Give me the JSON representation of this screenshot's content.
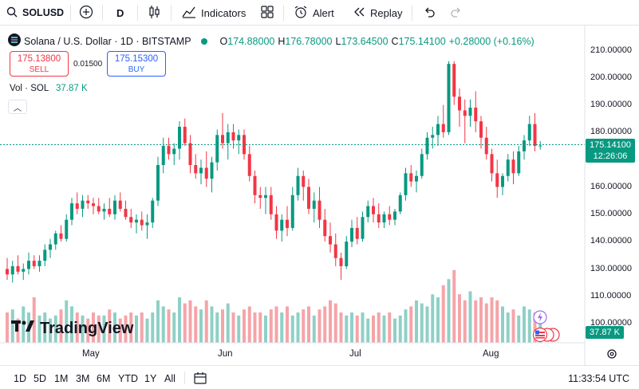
{
  "toolbar": {
    "symbol": "SOLUSD",
    "interval": "D",
    "indicators_label": "Indicators",
    "alert_label": "Alert",
    "replay_label": "Replay"
  },
  "legend": {
    "title": "Solana / U.S. Dollar · 1D · BITSTAMP",
    "open_label": "O",
    "open": "174.88000",
    "high_label": "H",
    "high": "176.78000",
    "low_label": "L",
    "low": "173.64500",
    "close_label": "C",
    "close": "175.14100",
    "change": "+0.28000 (+0.16%)"
  },
  "trade": {
    "sell_price": "175.13800",
    "sell_label": "SELL",
    "spread": "0.01500",
    "buy_price": "175.15300",
    "buy_label": "BUY"
  },
  "volume_legend": {
    "label": "Vol · SOL",
    "value": "37.87 K"
  },
  "price_axis": [
    "210.00000",
    "200.00000",
    "190.00000",
    "180.00000",
    "160.00000",
    "150.00000",
    "140.00000",
    "130.00000",
    "110.00000",
    "100.00000"
  ],
  "current_price": {
    "price": "175.14100",
    "countdown": "12:26:06"
  },
  "current_volume": "37.87 K",
  "time_axis": [
    "May",
    "Jun",
    "Jul",
    "Aug"
  ],
  "logo_text": "TradingView",
  "bottom": {
    "ranges": [
      "1D",
      "5D",
      "1M",
      "3M",
      "6M",
      "YTD",
      "1Y",
      "All"
    ],
    "clock": "11:33:54 UTC"
  },
  "colors": {
    "up": "#089981",
    "down": "#f23645",
    "up_vol": "#8fd0c6",
    "down_vol": "#f5a4a8"
  },
  "chart_data": {
    "type": "candlestick",
    "ylim": [
      100,
      212
    ],
    "ohlc": [
      [
        130,
        134,
        126,
        128
      ],
      [
        128,
        133,
        125,
        131
      ],
      [
        131,
        135,
        128,
        129
      ],
      [
        129,
        132,
        126,
        130
      ],
      [
        130,
        136,
        128,
        133
      ],
      [
        133,
        135,
        130,
        131
      ],
      [
        131,
        135,
        129,
        133
      ],
      [
        133,
        139,
        131,
        137
      ],
      [
        137,
        141,
        134,
        139
      ],
      [
        139,
        144,
        137,
        143
      ],
      [
        143,
        146,
        140,
        141
      ],
      [
        141,
        150,
        140,
        148
      ],
      [
        148,
        156,
        146,
        154
      ],
      [
        154,
        158,
        150,
        152
      ],
      [
        152,
        157,
        149,
        155
      ],
      [
        155,
        157,
        152,
        154
      ],
      [
        154,
        156,
        150,
        153
      ],
      [
        153,
        156,
        150,
        151
      ],
      [
        151,
        154,
        148,
        152
      ],
      [
        152,
        156,
        149,
        150
      ],
      [
        150,
        157,
        148,
        155
      ],
      [
        155,
        158,
        151,
        152
      ],
      [
        152,
        155,
        148,
        149
      ],
      [
        149,
        152,
        145,
        147
      ],
      [
        147,
        150,
        143,
        148
      ],
      [
        148,
        151,
        144,
        146
      ],
      [
        146,
        150,
        141,
        147
      ],
      [
        147,
        156,
        145,
        155
      ],
      [
        155,
        171,
        153,
        168
      ],
      [
        168,
        178,
        165,
        175
      ],
      [
        175,
        178,
        170,
        172
      ],
      [
        172,
        176,
        168,
        174
      ],
      [
        174,
        184,
        170,
        182
      ],
      [
        182,
        185,
        175,
        176
      ],
      [
        176,
        179,
        165,
        168
      ],
      [
        168,
        172,
        163,
        165
      ],
      [
        165,
        170,
        161,
        167
      ],
      [
        167,
        173,
        160,
        163
      ],
      [
        163,
        171,
        158,
        169
      ],
      [
        169,
        181,
        166,
        179
      ],
      [
        179,
        187,
        174,
        176
      ],
      [
        176,
        183,
        170,
        180
      ],
      [
        180,
        183,
        174,
        177
      ],
      [
        177,
        181,
        172,
        179
      ],
      [
        179,
        181,
        170,
        172
      ],
      [
        172,
        175,
        162,
        164
      ],
      [
        164,
        166,
        154,
        157
      ],
      [
        157,
        160,
        152,
        156
      ],
      [
        156,
        160,
        150,
        157
      ],
      [
        157,
        160,
        148,
        150
      ],
      [
        150,
        153,
        141,
        144
      ],
      [
        144,
        150,
        140,
        148
      ],
      [
        148,
        153,
        142,
        145
      ],
      [
        145,
        160,
        144,
        157
      ],
      [
        157,
        167,
        155,
        164
      ],
      [
        164,
        166,
        155,
        160
      ],
      [
        160,
        163,
        150,
        152
      ],
      [
        152,
        158,
        147,
        155
      ],
      [
        155,
        160,
        145,
        148
      ],
      [
        148,
        152,
        140,
        142
      ],
      [
        142,
        147,
        136,
        139
      ],
      [
        139,
        143,
        131,
        134
      ],
      [
        134,
        136,
        126,
        131
      ],
      [
        131,
        142,
        130,
        140
      ],
      [
        140,
        148,
        138,
        145
      ],
      [
        145,
        149,
        139,
        141
      ],
      [
        141,
        151,
        140,
        149
      ],
      [
        149,
        155,
        147,
        153
      ],
      [
        153,
        156,
        147,
        150
      ],
      [
        150,
        154,
        145,
        147
      ],
      [
        147,
        151,
        145,
        150
      ],
      [
        150,
        153,
        146,
        148
      ],
      [
        148,
        152,
        146,
        151
      ],
      [
        151,
        158,
        150,
        157
      ],
      [
        157,
        167,
        155,
        165
      ],
      [
        165,
        168,
        160,
        162
      ],
      [
        162,
        166,
        158,
        164
      ],
      [
        164,
        174,
        163,
        172
      ],
      [
        172,
        180,
        170,
        178
      ],
      [
        178,
        182,
        174,
        179
      ],
      [
        179,
        186,
        175,
        183
      ],
      [
        183,
        190,
        178,
        180
      ],
      [
        180,
        206,
        179,
        205
      ],
      [
        205,
        206,
        190,
        193
      ],
      [
        193,
        196,
        182,
        188
      ],
      [
        188,
        192,
        176,
        186
      ],
      [
        186,
        192,
        182,
        189
      ],
      [
        189,
        195,
        180,
        184
      ],
      [
        184,
        186,
        174,
        178
      ],
      [
        178,
        182,
        170,
        172
      ],
      [
        172,
        174,
        162,
        165
      ],
      [
        165,
        170,
        156,
        160
      ],
      [
        160,
        165,
        157,
        164
      ],
      [
        164,
        172,
        162,
        170
      ],
      [
        170,
        173,
        161,
        165
      ],
      [
        165,
        175,
        164,
        173
      ],
      [
        173,
        179,
        170,
        177
      ],
      [
        177,
        186,
        175,
        183
      ],
      [
        183,
        187,
        173,
        175
      ],
      [
        174.88,
        176.78,
        173.645,
        175.141
      ]
    ],
    "volume": [
      10,
      11,
      8,
      12,
      10,
      15,
      9,
      10,
      8,
      9,
      11,
      14,
      12,
      10,
      9,
      8,
      10,
      9,
      9,
      11,
      10,
      8,
      9,
      10,
      9,
      10,
      8,
      10,
      14,
      12,
      11,
      10,
      15,
      13,
      14,
      12,
      11,
      14,
      12,
      10,
      11,
      13,
      10,
      9,
      11,
      12,
      10,
      10,
      9,
      11,
      12,
      10,
      12,
      9,
      10,
      11,
      12,
      9,
      11,
      12,
      14,
      13,
      10,
      9,
      10,
      9,
      10,
      8,
      9,
      10,
      9,
      10,
      8,
      9,
      11,
      12,
      14,
      13,
      12,
      16,
      15,
      19,
      21,
      24,
      16,
      14,
      17,
      14,
      15,
      13,
      15,
      14,
      12,
      10,
      11,
      9,
      12,
      11,
      10,
      8
    ]
  }
}
